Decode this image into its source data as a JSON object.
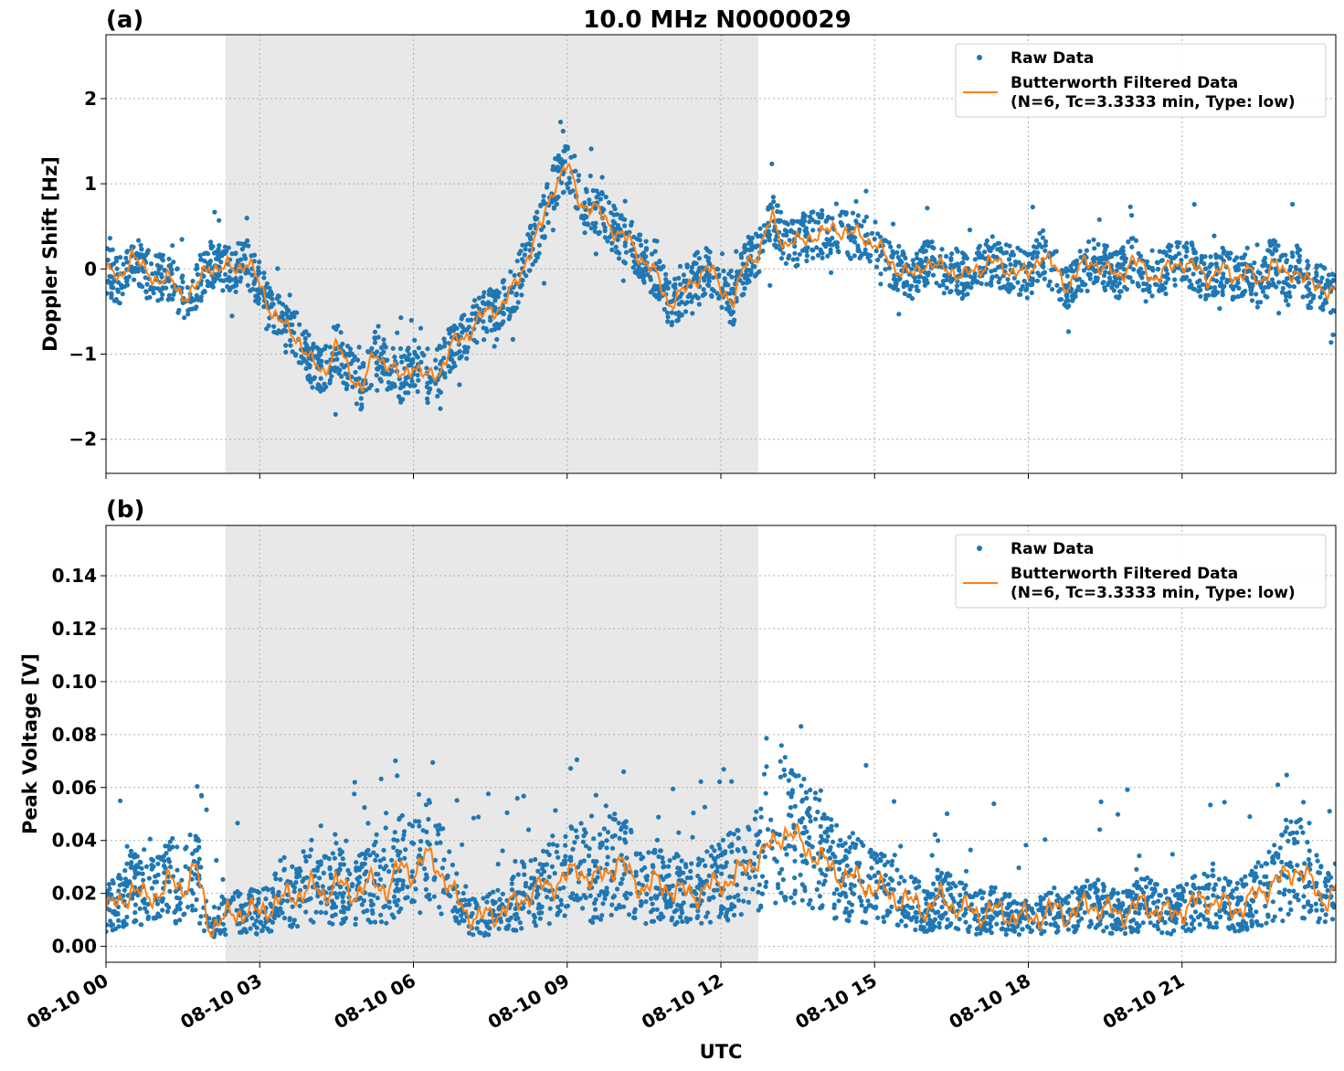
{
  "figure_title": "10.0 MHz N0000029",
  "colors": {
    "raw": "#1f77b4",
    "filtered": "#ff7f0e",
    "shade": "#e8e8e8",
    "grid": "#b0b0b0"
  },
  "xaxis": {
    "label": "UTC",
    "ticks": [
      {
        "hour": 0,
        "label": "08-10 00"
      },
      {
        "hour": 3,
        "label": "08-10 03"
      },
      {
        "hour": 6,
        "label": "08-10 06"
      },
      {
        "hour": 9,
        "label": "08-10 09"
      },
      {
        "hour": 12,
        "label": "08-10 12"
      },
      {
        "hour": 15,
        "label": "08-10 15"
      },
      {
        "hour": 18,
        "label": "08-10 18"
      },
      {
        "hour": 21,
        "label": "08-10 21"
      }
    ]
  },
  "chart_data": [
    {
      "type": "scatter",
      "panel_label": "(a)",
      "title": "10.0 MHz N0000029",
      "xlabel": "",
      "ylabel": "Doppler Shift [Hz]",
      "xlim": [
        0,
        24
      ],
      "ylim": [
        -2.4,
        2.75
      ],
      "yticks": [
        -2,
        -1,
        0,
        1,
        2
      ],
      "ytick_labels": [
        "−2",
        "−1",
        "0",
        "1",
        "2"
      ],
      "grid": true,
      "legend_placement": "top-right",
      "shaded_interval": [
        2.33,
        12.73
      ],
      "series": [
        {
          "name": "Raw Data",
          "kind": "points",
          "x": [
            0,
            0.25,
            0.5,
            0.75,
            1,
            1.25,
            1.5,
            1.75,
            2,
            2.25,
            2.5,
            2.75,
            3,
            3.25,
            3.5,
            3.75,
            4,
            4.25,
            4.5,
            4.75,
            5,
            5.25,
            5.5,
            5.75,
            6,
            6.25,
            6.5,
            6.75,
            7,
            7.25,
            7.5,
            7.75,
            8,
            8.25,
            8.5,
            8.75,
            9,
            9.25,
            9.5,
            9.75,
            10,
            10.25,
            10.5,
            10.75,
            11,
            11.25,
            11.5,
            11.75,
            12,
            12.25,
            12.5,
            12.75,
            13,
            13.25,
            13.5,
            13.75,
            14,
            14.25,
            14.5,
            14.75,
            15,
            15.25,
            15.5,
            15.75,
            16,
            16.25,
            16.5,
            16.75,
            17,
            17.25,
            17.5,
            17.75,
            18,
            18.25,
            18.5,
            18.75,
            19,
            19.25,
            19.5,
            19.75,
            20,
            20.25,
            20.5,
            20.75,
            21,
            21.25,
            21.5,
            21.75,
            22,
            22.25,
            22.5,
            22.75,
            23,
            23.25,
            23.5,
            23.75,
            24
          ],
          "y": [
            0.0,
            -0.15,
            0.2,
            -0.05,
            -0.1,
            -0.15,
            -0.3,
            -0.25,
            0.05,
            0.0,
            0.0,
            0.1,
            -0.2,
            -0.5,
            -0.7,
            -0.8,
            -1.1,
            -1.2,
            -0.9,
            -1.2,
            -1.4,
            -1.0,
            -1.1,
            -1.3,
            -1.1,
            -1.3,
            -1.2,
            -0.9,
            -0.8,
            -0.6,
            -0.5,
            -0.4,
            -0.2,
            0.2,
            0.5,
            1.0,
            1.2,
            0.8,
            0.7,
            0.6,
            0.4,
            0.3,
            0.1,
            -0.1,
            -0.4,
            -0.3,
            -0.1,
            0.0,
            -0.2,
            -0.4,
            0.1,
            0.2,
            0.6,
            0.3,
            0.3,
            0.4,
            0.4,
            0.5,
            0.4,
            0.4,
            0.3,
            0.1,
            0.0,
            -0.1,
            0.1,
            0.0,
            0.0,
            -0.1,
            0.0,
            0.1,
            0.0,
            0.0,
            -0.1,
            0.2,
            0.0,
            -0.2,
            0.0,
            0.1,
            0.0,
            -0.1,
            0.1,
            0.0,
            -0.1,
            0.0,
            0.1,
            0.0,
            -0.1,
            0.0,
            -0.1,
            0.0,
            -0.2,
            0.1,
            -0.1,
            0.0,
            -0.2,
            -0.2,
            -0.3
          ]
        },
        {
          "name": "Butterworth Filtered Data\n(N=6, Tc=3.3333 min, Type: low)",
          "kind": "line",
          "x": [
            0,
            0.25,
            0.5,
            0.75,
            1,
            1.25,
            1.5,
            1.75,
            2,
            2.25,
            2.5,
            2.75,
            3,
            3.25,
            3.5,
            3.75,
            4,
            4.25,
            4.5,
            4.75,
            5,
            5.25,
            5.5,
            5.75,
            6,
            6.25,
            6.5,
            6.75,
            7,
            7.25,
            7.5,
            7.75,
            8,
            8.25,
            8.5,
            8.75,
            9,
            9.25,
            9.5,
            9.75,
            10,
            10.25,
            10.5,
            10.75,
            11,
            11.25,
            11.5,
            11.75,
            12,
            12.25,
            12.5,
            12.75,
            13,
            13.25,
            13.5,
            13.75,
            14,
            14.25,
            14.5,
            14.75,
            15,
            15.25,
            15.5,
            15.75,
            16,
            16.25,
            16.5,
            16.75,
            17,
            17.25,
            17.5,
            17.75,
            18,
            18.25,
            18.5,
            18.75,
            19,
            19.25,
            19.5,
            19.75,
            20,
            20.25,
            20.5,
            20.75,
            21,
            21.25,
            21.5,
            21.75,
            22,
            22.25,
            22.5,
            22.75,
            23,
            23.25,
            23.5,
            23.75,
            24
          ],
          "y": [
            0.0,
            -0.15,
            0.2,
            -0.05,
            -0.1,
            -0.15,
            -0.3,
            -0.25,
            0.05,
            0.0,
            0.0,
            0.1,
            -0.2,
            -0.5,
            -0.7,
            -0.8,
            -1.1,
            -1.2,
            -0.9,
            -1.2,
            -1.4,
            -1.0,
            -1.1,
            -1.3,
            -1.1,
            -1.3,
            -1.2,
            -0.9,
            -0.8,
            -0.6,
            -0.5,
            -0.4,
            -0.2,
            0.2,
            0.5,
            1.0,
            1.2,
            0.8,
            0.7,
            0.6,
            0.4,
            0.3,
            0.1,
            -0.1,
            -0.4,
            -0.3,
            -0.1,
            0.0,
            -0.2,
            -0.4,
            0.1,
            0.2,
            0.6,
            0.3,
            0.3,
            0.4,
            0.4,
            0.5,
            0.4,
            0.4,
            0.3,
            0.1,
            0.0,
            -0.1,
            0.1,
            0.0,
            0.0,
            -0.1,
            0.0,
            0.1,
            0.0,
            0.0,
            -0.1,
            0.2,
            0.0,
            -0.2,
            0.0,
            0.1,
            0.0,
            -0.1,
            0.1,
            0.0,
            -0.1,
            0.0,
            0.1,
            0.0,
            -0.1,
            0.0,
            -0.1,
            0.0,
            -0.2,
            0.1,
            -0.1,
            0.0,
            -0.2,
            -0.2,
            -0.3
          ]
        }
      ]
    },
    {
      "type": "scatter",
      "panel_label": "(b)",
      "title": "",
      "xlabel": "UTC",
      "ylabel": "Peak Voltage [V]",
      "xlim": [
        0,
        24
      ],
      "ylim": [
        -0.006,
        0.159
      ],
      "yticks": [
        0,
        0.02,
        0.04,
        0.06,
        0.08,
        0.1,
        0.12,
        0.14
      ],
      "ytick_labels": [
        "0.00",
        "0.02",
        "0.04",
        "0.06",
        "0.08",
        "0.10",
        "0.12",
        "0.14"
      ],
      "grid": true,
      "legend_placement": "top-right",
      "shaded_interval": [
        2.33,
        12.73
      ],
      "series": [
        {
          "name": "Raw Data",
          "kind": "points",
          "x": [
            0,
            0.25,
            0.5,
            0.75,
            1,
            1.25,
            1.5,
            1.75,
            2,
            2.25,
            2.5,
            2.75,
            3,
            3.25,
            3.5,
            3.75,
            4,
            4.25,
            4.5,
            4.75,
            5,
            5.25,
            5.5,
            5.75,
            6,
            6.25,
            6.5,
            6.75,
            7,
            7.25,
            7.5,
            7.75,
            8,
            8.25,
            8.5,
            8.75,
            9,
            9.25,
            9.5,
            9.75,
            10,
            10.25,
            10.5,
            10.75,
            11,
            11.25,
            11.5,
            11.75,
            12,
            12.25,
            12.5,
            12.75,
            13,
            13.25,
            13.5,
            13.75,
            14,
            14.25,
            14.5,
            14.75,
            15,
            15.25,
            15.5,
            15.75,
            16,
            16.25,
            16.5,
            16.75,
            17,
            17.25,
            17.5,
            17.75,
            18,
            18.25,
            18.5,
            18.75,
            19,
            19.25,
            19.5,
            19.75,
            20,
            20.25,
            20.5,
            20.75,
            21,
            21.25,
            21.5,
            21.75,
            22,
            22.25,
            22.5,
            22.75,
            23,
            23.25,
            23.5,
            23.75,
            24
          ],
          "y": [
            0.014,
            0.016,
            0.022,
            0.018,
            0.02,
            0.024,
            0.022,
            0.03,
            0.008,
            0.01,
            0.012,
            0.014,
            0.012,
            0.016,
            0.018,
            0.02,
            0.022,
            0.02,
            0.024,
            0.02,
            0.022,
            0.024,
            0.022,
            0.03,
            0.028,
            0.034,
            0.03,
            0.02,
            0.014,
            0.01,
            0.012,
            0.014,
            0.016,
            0.02,
            0.022,
            0.024,
            0.026,
            0.03,
            0.024,
            0.028,
            0.032,
            0.026,
            0.022,
            0.024,
            0.022,
            0.02,
            0.02,
            0.022,
            0.024,
            0.026,
            0.03,
            0.034,
            0.038,
            0.044,
            0.04,
            0.036,
            0.032,
            0.028,
            0.026,
            0.024,
            0.022,
            0.02,
            0.018,
            0.016,
            0.014,
            0.018,
            0.016,
            0.014,
            0.012,
            0.014,
            0.012,
            0.012,
            0.01,
            0.012,
            0.014,
            0.012,
            0.014,
            0.016,
            0.014,
            0.012,
            0.014,
            0.016,
            0.014,
            0.012,
            0.014,
            0.016,
            0.018,
            0.016,
            0.014,
            0.016,
            0.02,
            0.024,
            0.026,
            0.03,
            0.024,
            0.018,
            0.02
          ]
        },
        {
          "name": "Butterworth Filtered Data\n(N=6, Tc=3.3333 min, Type: low)",
          "kind": "line",
          "x": [
            0,
            0.25,
            0.5,
            0.75,
            1,
            1.25,
            1.5,
            1.75,
            2,
            2.25,
            2.5,
            2.75,
            3,
            3.25,
            3.5,
            3.75,
            4,
            4.25,
            4.5,
            4.75,
            5,
            5.25,
            5.5,
            5.75,
            6,
            6.25,
            6.5,
            6.75,
            7,
            7.25,
            7.5,
            7.75,
            8,
            8.25,
            8.5,
            8.75,
            9,
            9.25,
            9.5,
            9.75,
            10,
            10.25,
            10.5,
            10.75,
            11,
            11.25,
            11.5,
            11.75,
            12,
            12.25,
            12.5,
            12.75,
            13,
            13.25,
            13.5,
            13.75,
            14,
            14.25,
            14.5,
            14.75,
            15,
            15.25,
            15.5,
            15.75,
            16,
            16.25,
            16.5,
            16.75,
            17,
            17.25,
            17.5,
            17.75,
            18,
            18.25,
            18.5,
            18.75,
            19,
            19.25,
            19.5,
            19.75,
            20,
            20.25,
            20.5,
            20.75,
            21,
            21.25,
            21.5,
            21.75,
            22,
            22.25,
            22.5,
            22.75,
            23,
            23.25,
            23.5,
            23.75,
            24
          ],
          "y": [
            0.014,
            0.016,
            0.022,
            0.018,
            0.02,
            0.024,
            0.022,
            0.03,
            0.008,
            0.01,
            0.012,
            0.014,
            0.012,
            0.016,
            0.018,
            0.02,
            0.022,
            0.02,
            0.024,
            0.02,
            0.022,
            0.024,
            0.022,
            0.03,
            0.028,
            0.034,
            0.03,
            0.02,
            0.014,
            0.01,
            0.012,
            0.014,
            0.016,
            0.02,
            0.022,
            0.024,
            0.026,
            0.03,
            0.024,
            0.028,
            0.032,
            0.026,
            0.022,
            0.024,
            0.022,
            0.02,
            0.02,
            0.022,
            0.024,
            0.026,
            0.03,
            0.034,
            0.038,
            0.044,
            0.04,
            0.036,
            0.032,
            0.028,
            0.026,
            0.024,
            0.022,
            0.02,
            0.018,
            0.016,
            0.014,
            0.018,
            0.016,
            0.014,
            0.012,
            0.014,
            0.012,
            0.012,
            0.01,
            0.012,
            0.014,
            0.012,
            0.014,
            0.016,
            0.014,
            0.012,
            0.014,
            0.016,
            0.014,
            0.012,
            0.014,
            0.016,
            0.018,
            0.016,
            0.014,
            0.016,
            0.02,
            0.024,
            0.026,
            0.03,
            0.024,
            0.018,
            0.02
          ]
        }
      ]
    }
  ]
}
